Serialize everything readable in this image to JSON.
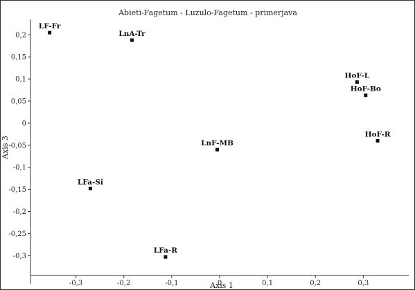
{
  "chart_data": {
    "type": "scatter",
    "title": "Abieti-Fagetum - Luzulo-Fagetum - primerjava",
    "xlabel": "Axis 1",
    "ylabel": "Axis 3",
    "xlim": [
      -0.395,
      0.395
    ],
    "ylim": [
      -0.345,
      0.235
    ],
    "xticks": [
      -0.3,
      -0.2,
      -0.1,
      0,
      0.1,
      0.2,
      0.3
    ],
    "xtick_labels": [
      "-0,3",
      "-0,2",
      "-0,1",
      "0",
      "0,1",
      "0,2",
      "0,3"
    ],
    "yticks": [
      0.2,
      0.15,
      0.1,
      0.05,
      0,
      -0.05,
      -0.1,
      -0.15,
      -0.2,
      -0.25,
      -0.3
    ],
    "ytick_labels": [
      "0,2",
      "0,15",
      "0,1",
      "0,05",
      "0",
      "-0,05",
      "-0,1",
      "-0,15",
      "-0,2",
      "-0,25",
      "-0,3"
    ],
    "grid": false,
    "points": [
      {
        "label": "LF-Fr",
        "x": -0.355,
        "y": 0.205
      },
      {
        "label": "LnA-Tr",
        "x": -0.183,
        "y": 0.188
      },
      {
        "label": "HoF-L",
        "x": 0.287,
        "y": 0.093
      },
      {
        "label": "HoF-Bo",
        "x": 0.305,
        "y": 0.063
      },
      {
        "label": "HoF-R",
        "x": 0.33,
        "y": -0.04
      },
      {
        "label": "LnF-MB",
        "x": -0.005,
        "y": -0.06
      },
      {
        "label": "LFa-Si",
        "x": -0.27,
        "y": -0.148
      },
      {
        "label": "LFa-R",
        "x": -0.113,
        "y": -0.303
      }
    ]
  }
}
